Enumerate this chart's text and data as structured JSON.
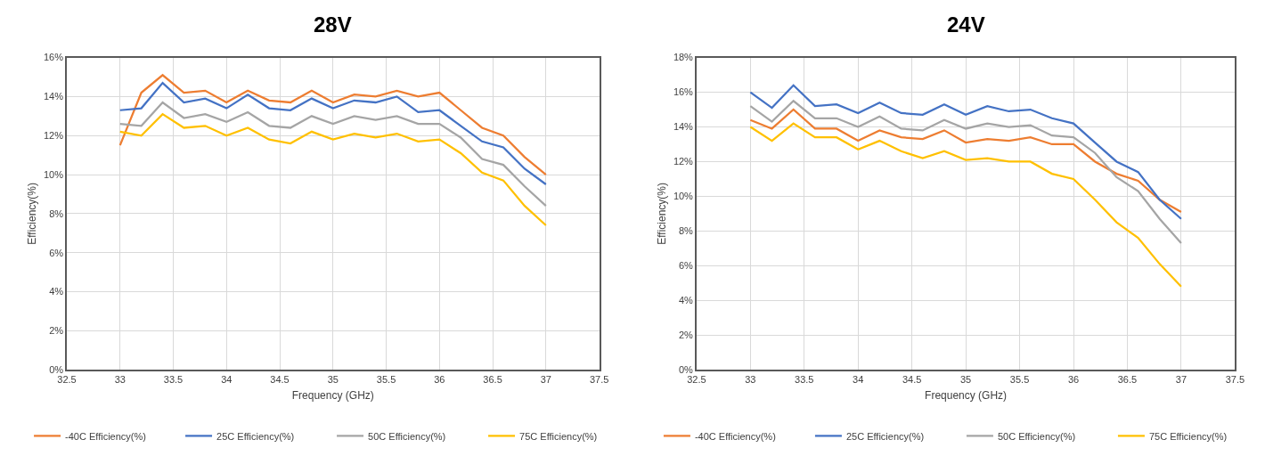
{
  "chart_data": [
    {
      "type": "line",
      "title": "28V",
      "xlabel": "Frequency (GHz)",
      "ylabel": "Efficiency(%)",
      "x": [
        33,
        33.2,
        33.4,
        33.6,
        33.8,
        34,
        34.2,
        34.4,
        34.6,
        34.8,
        35,
        35.2,
        35.4,
        35.6,
        35.8,
        36,
        36.2,
        36.4,
        36.6,
        36.8,
        37
      ],
      "series": [
        {
          "name": "-40C Efficiency(%)",
          "color": "#ed7d31",
          "values": [
            11.5,
            14.2,
            15.1,
            14.2,
            14.3,
            13.7,
            14.3,
            13.8,
            13.7,
            14.3,
            13.7,
            14.1,
            14.0,
            14.3,
            14.0,
            14.2,
            13.3,
            12.4,
            12.0,
            10.9,
            10.0
          ]
        },
        {
          "name": "25C Efficiency(%)",
          "color": "#4472c4",
          "values": [
            13.3,
            13.4,
            14.7,
            13.7,
            13.9,
            13.4,
            14.1,
            13.4,
            13.3,
            13.9,
            13.4,
            13.8,
            13.7,
            14.0,
            13.2,
            13.3,
            12.5,
            11.7,
            11.4,
            10.3,
            9.5
          ]
        },
        {
          "name": "50C Efficiency(%)",
          "color": "#a5a5a5",
          "values": [
            12.6,
            12.5,
            13.7,
            12.9,
            13.1,
            12.7,
            13.2,
            12.5,
            12.4,
            13.0,
            12.6,
            13.0,
            12.8,
            13.0,
            12.6,
            12.6,
            11.9,
            10.8,
            10.5,
            9.4,
            8.4
          ]
        },
        {
          "name": "75C Efficiency(%)",
          "color": "#ffc000",
          "values": [
            12.2,
            12.0,
            13.1,
            12.4,
            12.5,
            12.0,
            12.4,
            11.8,
            11.6,
            12.2,
            11.8,
            12.1,
            11.9,
            12.1,
            11.7,
            11.8,
            11.1,
            10.1,
            9.7,
            8.4,
            7.4
          ]
        }
      ],
      "xlim": [
        32.5,
        37.5
      ],
      "xticks": [
        32.5,
        33,
        33.5,
        34,
        34.5,
        35,
        35.5,
        36,
        36.5,
        37,
        37.5
      ],
      "ylim": [
        0,
        16
      ],
      "yticks": [
        {
          "value": 0,
          "label": "0%"
        },
        {
          "value": 2,
          "label": "2%"
        },
        {
          "value": 4,
          "label": "4%"
        },
        {
          "value": 6,
          "label": "6%"
        },
        {
          "value": 8,
          "label": "8%"
        },
        {
          "value": 10,
          "label": "10%"
        },
        {
          "value": 12,
          "label": "12%"
        },
        {
          "value": 14,
          "label": "14%"
        },
        {
          "value": 16,
          "label": "16%"
        }
      ],
      "grid": true,
      "legend": "bottom",
      "marker": "none",
      "line_style": "solid"
    },
    {
      "type": "line",
      "title": "24V",
      "xlabel": "Frequency (GHz)",
      "ylabel": "Efficiency(%)",
      "x": [
        33,
        33.2,
        33.4,
        33.6,
        33.8,
        34,
        34.2,
        34.4,
        34.6,
        34.8,
        35,
        35.2,
        35.4,
        35.6,
        35.8,
        36,
        36.2,
        36.4,
        36.6,
        36.8,
        37
      ],
      "series": [
        {
          "name": "-40C Efficiency(%)",
          "color": "#ed7d31",
          "values": [
            14.4,
            13.9,
            15.0,
            13.9,
            13.9,
            13.2,
            13.8,
            13.4,
            13.3,
            13.8,
            13.1,
            13.3,
            13.2,
            13.4,
            13.0,
            13.0,
            12.0,
            11.3,
            10.9,
            9.8,
            9.1
          ]
        },
        {
          "name": "25C Efficiency(%)",
          "color": "#4472c4",
          "values": [
            16.0,
            15.1,
            16.4,
            15.2,
            15.3,
            14.8,
            15.4,
            14.8,
            14.7,
            15.3,
            14.7,
            15.2,
            14.9,
            15.0,
            14.5,
            14.2,
            13.1,
            12.0,
            11.4,
            9.8,
            8.7
          ]
        },
        {
          "name": "50C Efficiency(%)",
          "color": "#a5a5a5",
          "values": [
            15.2,
            14.3,
            15.5,
            14.5,
            14.5,
            14.0,
            14.6,
            13.9,
            13.8,
            14.4,
            13.9,
            14.2,
            14.0,
            14.1,
            13.5,
            13.4,
            12.5,
            11.1,
            10.3,
            8.7,
            7.3
          ]
        },
        {
          "name": "75C Efficiency(%)",
          "color": "#ffc000",
          "values": [
            14.0,
            13.2,
            14.2,
            13.4,
            13.4,
            12.7,
            13.2,
            12.6,
            12.2,
            12.6,
            12.1,
            12.2,
            12.0,
            12.0,
            11.3,
            11.0,
            9.8,
            8.5,
            7.6,
            6.1,
            4.8
          ]
        }
      ],
      "xlim": [
        32.5,
        37.5
      ],
      "xticks": [
        32.5,
        33,
        33.5,
        34,
        34.5,
        35,
        35.5,
        36,
        36.5,
        37,
        37.5
      ],
      "ylim": [
        0,
        18
      ],
      "yticks": [
        {
          "value": 0,
          "label": "0%"
        },
        {
          "value": 2,
          "label": "2%"
        },
        {
          "value": 4,
          "label": "4%"
        },
        {
          "value": 6,
          "label": "6%"
        },
        {
          "value": 8,
          "label": "8%"
        },
        {
          "value": 10,
          "label": "10%"
        },
        {
          "value": 12,
          "label": "12%"
        },
        {
          "value": 14,
          "label": "14%"
        },
        {
          "value": 16,
          "label": "16%"
        },
        {
          "value": 18,
          "label": "18%"
        }
      ],
      "grid": true,
      "legend": "bottom",
      "marker": "none",
      "line_style": "solid"
    }
  ]
}
